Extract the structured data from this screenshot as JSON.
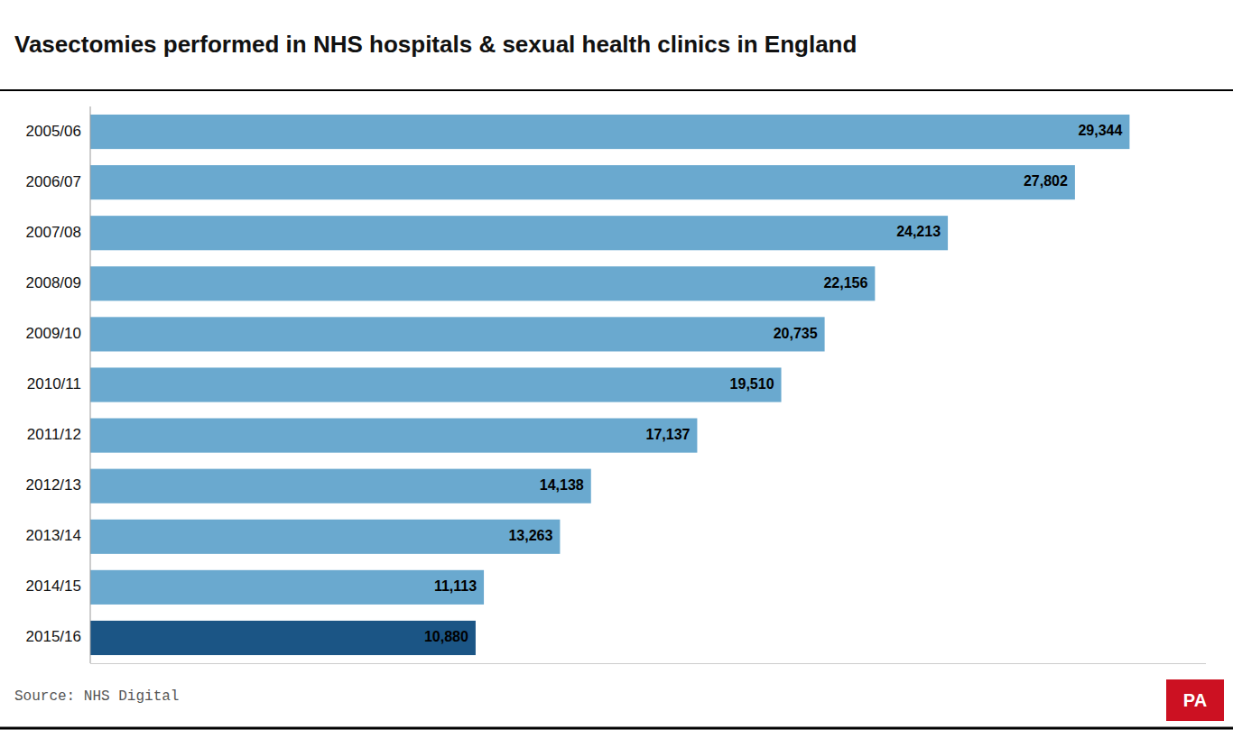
{
  "chart_data": {
    "type": "bar",
    "orientation": "horizontal",
    "title": "Vasectomies performed in NHS hospitals & sexual health clinics in England",
    "categories": [
      "2005/06",
      "2006/07",
      "2007/08",
      "2008/09",
      "2009/10",
      "2010/11",
      "2011/12",
      "2012/13",
      "2013/14",
      "2014/15",
      "2015/16"
    ],
    "values": [
      29344,
      27802,
      24213,
      22156,
      20735,
      19510,
      17137,
      14138,
      13263,
      11113,
      10880
    ],
    "value_labels": [
      "29,344",
      "27,802",
      "24,213",
      "22,156",
      "20,735",
      "19,510",
      "17,137",
      "14,138",
      "13,263",
      "11,113",
      "10,880"
    ],
    "colors": [
      "#6aa9cf",
      "#6aa9cf",
      "#6aa9cf",
      "#6aa9cf",
      "#6aa9cf",
      "#6aa9cf",
      "#6aa9cf",
      "#6aa9cf",
      "#6aa9cf",
      "#6aa9cf",
      "#1b5585"
    ],
    "xlim": [
      0,
      31500
    ],
    "data_labels": true,
    "tick_labels": "y",
    "grid": false,
    "annotations": [
      {
        "text": "Source: NHS Digital"
      },
      {
        "text": "PA",
        "color": "#cc1122"
      }
    ]
  }
}
